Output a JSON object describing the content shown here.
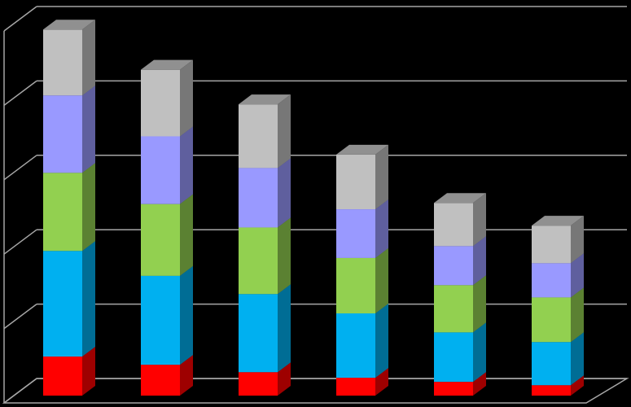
{
  "chart_data": {
    "type": "bar3d_stacked",
    "categories": [
      null,
      null,
      null,
      null,
      null,
      null
    ],
    "ylim": [
      0,
      100
    ],
    "gridlines": [
      0,
      20,
      40,
      60,
      80,
      100
    ],
    "grid": true,
    "series": [
      {
        "color": "#ff0000",
        "values": [
          10.5,
          8.3,
          6.3,
          4.8,
          3.7,
          2.8
        ]
      },
      {
        "color": "#00b0f0",
        "values": [
          28.4,
          23.9,
          21,
          17.3,
          13.3,
          11.6
        ]
      },
      {
        "color": "#92d050",
        "values": [
          21,
          19.3,
          17.9,
          14.9,
          12.7,
          12
        ]
      },
      {
        "color": "#9999ff",
        "values": [
          20.8,
          18.2,
          16,
          13.1,
          10.5,
          9.2
        ]
      },
      {
        "color": "#c0c0c0",
        "values": [
          17.7,
          17.9,
          17.1,
          14.7,
          11.6,
          10.1
        ]
      }
    ]
  }
}
